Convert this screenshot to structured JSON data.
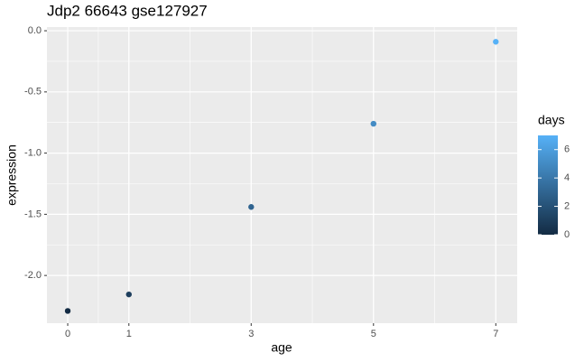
{
  "chart_data": {
    "type": "scatter",
    "title": "Jdp2 66643 gse127927",
    "x_label": "age",
    "y_label": "expression",
    "x": [
      0,
      1,
      3,
      5,
      7
    ],
    "values": [
      -2.29,
      -2.155,
      -1.44,
      -0.76,
      -0.09
    ],
    "days": [
      0,
      1,
      3,
      5,
      7
    ],
    "xlim": [
      -0.34,
      7.35
    ],
    "xticks": [
      0,
      1,
      3,
      5,
      7
    ],
    "ylim": [
      -2.39,
      0.03
    ],
    "yticks": [
      {
        "value": -2,
        "label": "-2.0"
      },
      -1.5,
      {
        "value": -1,
        "label": "-1.0"
      },
      -0.5,
      {
        "value": 0,
        "label": "0.0"
      }
    ],
    "grid": true,
    "colorbar": {
      "title": "days",
      "lim": [
        0,
        7
      ],
      "ticks": [
        0,
        2,
        4,
        6
      ],
      "low": "#132B43",
      "high": "#56B1F7"
    }
  }
}
